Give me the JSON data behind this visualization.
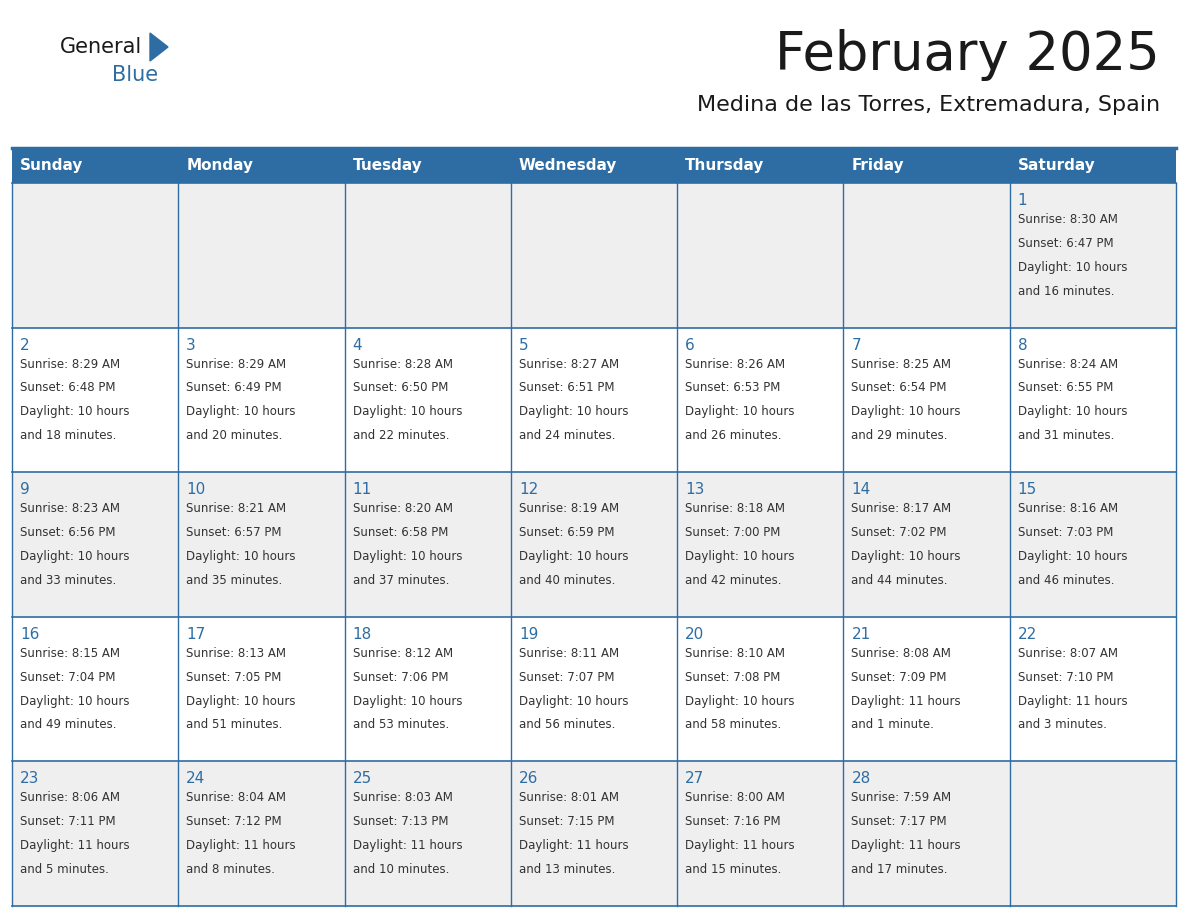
{
  "title": "February 2025",
  "subtitle": "Medina de las Torres, Extremadura, Spain",
  "header_bg": "#2E6DA4",
  "header_text_color": "#FFFFFF",
  "cell_bg_even": "#EFEFEF",
  "cell_bg_odd": "#FFFFFF",
  "border_color": "#2E6DA4",
  "day_headers": [
    "Sunday",
    "Monday",
    "Tuesday",
    "Wednesday",
    "Thursday",
    "Friday",
    "Saturday"
  ],
  "title_color": "#1a1a1a",
  "subtitle_color": "#1a1a1a",
  "text_color": "#333333",
  "day_num_color": "#2E6DA4",
  "logo_general_color": "#1a1a1a",
  "logo_blue_color": "#2E6DA4",
  "days": [
    {
      "day": 1,
      "col": 6,
      "row": 0,
      "sunrise": "8:30 AM",
      "sunset": "6:47 PM",
      "daylight_l1": "10 hours",
      "daylight_l2": "and 16 minutes."
    },
    {
      "day": 2,
      "col": 0,
      "row": 1,
      "sunrise": "8:29 AM",
      "sunset": "6:48 PM",
      "daylight_l1": "10 hours",
      "daylight_l2": "and 18 minutes."
    },
    {
      "day": 3,
      "col": 1,
      "row": 1,
      "sunrise": "8:29 AM",
      "sunset": "6:49 PM",
      "daylight_l1": "10 hours",
      "daylight_l2": "and 20 minutes."
    },
    {
      "day": 4,
      "col": 2,
      "row": 1,
      "sunrise": "8:28 AM",
      "sunset": "6:50 PM",
      "daylight_l1": "10 hours",
      "daylight_l2": "and 22 minutes."
    },
    {
      "day": 5,
      "col": 3,
      "row": 1,
      "sunrise": "8:27 AM",
      "sunset": "6:51 PM",
      "daylight_l1": "10 hours",
      "daylight_l2": "and 24 minutes."
    },
    {
      "day": 6,
      "col": 4,
      "row": 1,
      "sunrise": "8:26 AM",
      "sunset": "6:53 PM",
      "daylight_l1": "10 hours",
      "daylight_l2": "and 26 minutes."
    },
    {
      "day": 7,
      "col": 5,
      "row": 1,
      "sunrise": "8:25 AM",
      "sunset": "6:54 PM",
      "daylight_l1": "10 hours",
      "daylight_l2": "and 29 minutes."
    },
    {
      "day": 8,
      "col": 6,
      "row": 1,
      "sunrise": "8:24 AM",
      "sunset": "6:55 PM",
      "daylight_l1": "10 hours",
      "daylight_l2": "and 31 minutes."
    },
    {
      "day": 9,
      "col": 0,
      "row": 2,
      "sunrise": "8:23 AM",
      "sunset": "6:56 PM",
      "daylight_l1": "10 hours",
      "daylight_l2": "and 33 minutes."
    },
    {
      "day": 10,
      "col": 1,
      "row": 2,
      "sunrise": "8:21 AM",
      "sunset": "6:57 PM",
      "daylight_l1": "10 hours",
      "daylight_l2": "and 35 minutes."
    },
    {
      "day": 11,
      "col": 2,
      "row": 2,
      "sunrise": "8:20 AM",
      "sunset": "6:58 PM",
      "daylight_l1": "10 hours",
      "daylight_l2": "and 37 minutes."
    },
    {
      "day": 12,
      "col": 3,
      "row": 2,
      "sunrise": "8:19 AM",
      "sunset": "6:59 PM",
      "daylight_l1": "10 hours",
      "daylight_l2": "and 40 minutes."
    },
    {
      "day": 13,
      "col": 4,
      "row": 2,
      "sunrise": "8:18 AM",
      "sunset": "7:00 PM",
      "daylight_l1": "10 hours",
      "daylight_l2": "and 42 minutes."
    },
    {
      "day": 14,
      "col": 5,
      "row": 2,
      "sunrise": "8:17 AM",
      "sunset": "7:02 PM",
      "daylight_l1": "10 hours",
      "daylight_l2": "and 44 minutes."
    },
    {
      "day": 15,
      "col": 6,
      "row": 2,
      "sunrise": "8:16 AM",
      "sunset": "7:03 PM",
      "daylight_l1": "10 hours",
      "daylight_l2": "and 46 minutes."
    },
    {
      "day": 16,
      "col": 0,
      "row": 3,
      "sunrise": "8:15 AM",
      "sunset": "7:04 PM",
      "daylight_l1": "10 hours",
      "daylight_l2": "and 49 minutes."
    },
    {
      "day": 17,
      "col": 1,
      "row": 3,
      "sunrise": "8:13 AM",
      "sunset": "7:05 PM",
      "daylight_l1": "10 hours",
      "daylight_l2": "and 51 minutes."
    },
    {
      "day": 18,
      "col": 2,
      "row": 3,
      "sunrise": "8:12 AM",
      "sunset": "7:06 PM",
      "daylight_l1": "10 hours",
      "daylight_l2": "and 53 minutes."
    },
    {
      "day": 19,
      "col": 3,
      "row": 3,
      "sunrise": "8:11 AM",
      "sunset": "7:07 PM",
      "daylight_l1": "10 hours",
      "daylight_l2": "and 56 minutes."
    },
    {
      "day": 20,
      "col": 4,
      "row": 3,
      "sunrise": "8:10 AM",
      "sunset": "7:08 PM",
      "daylight_l1": "10 hours",
      "daylight_l2": "and 58 minutes."
    },
    {
      "day": 21,
      "col": 5,
      "row": 3,
      "sunrise": "8:08 AM",
      "sunset": "7:09 PM",
      "daylight_l1": "11 hours",
      "daylight_l2": "and 1 minute."
    },
    {
      "day": 22,
      "col": 6,
      "row": 3,
      "sunrise": "8:07 AM",
      "sunset": "7:10 PM",
      "daylight_l1": "11 hours",
      "daylight_l2": "and 3 minutes."
    },
    {
      "day": 23,
      "col": 0,
      "row": 4,
      "sunrise": "8:06 AM",
      "sunset": "7:11 PM",
      "daylight_l1": "11 hours",
      "daylight_l2": "and 5 minutes."
    },
    {
      "day": 24,
      "col": 1,
      "row": 4,
      "sunrise": "8:04 AM",
      "sunset": "7:12 PM",
      "daylight_l1": "11 hours",
      "daylight_l2": "and 8 minutes."
    },
    {
      "day": 25,
      "col": 2,
      "row": 4,
      "sunrise": "8:03 AM",
      "sunset": "7:13 PM",
      "daylight_l1": "11 hours",
      "daylight_l2": "and 10 minutes."
    },
    {
      "day": 26,
      "col": 3,
      "row": 4,
      "sunrise": "8:01 AM",
      "sunset": "7:15 PM",
      "daylight_l1": "11 hours",
      "daylight_l2": "and 13 minutes."
    },
    {
      "day": 27,
      "col": 4,
      "row": 4,
      "sunrise": "8:00 AM",
      "sunset": "7:16 PM",
      "daylight_l1": "11 hours",
      "daylight_l2": "and 15 minutes."
    },
    {
      "day": 28,
      "col": 5,
      "row": 4,
      "sunrise": "7:59 AM",
      "sunset": "7:17 PM",
      "daylight_l1": "11 hours",
      "daylight_l2": "and 17 minutes."
    }
  ]
}
